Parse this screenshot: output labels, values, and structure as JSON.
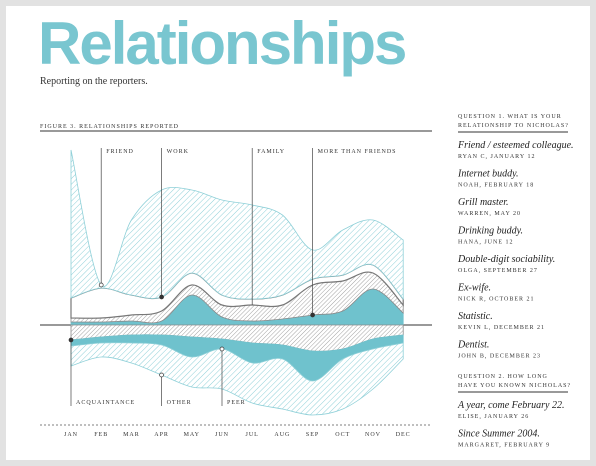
{
  "title": "Relationships",
  "subtitle": "Reporting on the reporters.",
  "chart_data": {
    "type": "streamgraph",
    "title": "FIGURE 3. RELATIONSHIPS REPORTED",
    "categories": [
      "JAN",
      "FEB",
      "MAR",
      "APR",
      "MAY",
      "JUN",
      "JUL",
      "AUG",
      "SEP",
      "OCT",
      "NOV",
      "DEC"
    ],
    "series": [
      {
        "name": "MORE THAN FRIENDS",
        "color": "#6fc2cd",
        "pattern": "solid",
        "position": "above",
        "values": [
          3,
          3,
          4,
          4,
          30,
          8,
          4,
          6,
          10,
          14,
          36,
          12
        ]
      },
      {
        "name": "FAMILY",
        "color": "#8a8a8a",
        "pattern": "hatch",
        "position": "above",
        "values": [
          4,
          4,
          6,
          10,
          10,
          12,
          16,
          14,
          30,
          30,
          16,
          8
        ]
      },
      {
        "name": "WORK",
        "color": "#777777",
        "pattern": "none",
        "position": "above",
        "values": [
          20,
          30,
          20,
          14,
          12,
          10,
          6,
          10,
          6,
          6,
          8,
          6
        ]
      },
      {
        "name": "FRIEND",
        "color": "#8fd0d8",
        "pattern": "hatch",
        "position": "above",
        "values": [
          148,
          3,
          75,
          107,
          83,
          95,
          94,
          80,
          29,
          45,
          45,
          59
        ]
      },
      {
        "name": "ACQUAINTANCE",
        "color": "#8a8a8a",
        "pattern": "hatch",
        "position": "below",
        "values": [
          15,
          12,
          10,
          10,
          12,
          14,
          18,
          20,
          26,
          24,
          14,
          10
        ]
      },
      {
        "name": "PEER",
        "color": "#6fc2cd",
        "pattern": "solid",
        "position": "below",
        "values": [
          6,
          6,
          8,
          10,
          20,
          10,
          20,
          14,
          30,
          10,
          10,
          8
        ]
      },
      {
        "name": "OTHER",
        "color": "#8fd0d8",
        "pattern": "hatch",
        "position": "below",
        "values": [
          20,
          14,
          20,
          30,
          30,
          40,
          40,
          50,
          34,
          50,
          40,
          16
        ]
      }
    ]
  },
  "sidebar": [
    {
      "question": [
        "QUESTION 1. WHAT IS YOUR",
        "RELATIONSHIP TO NICHOLAS?"
      ],
      "answers": [
        {
          "answer": "Friend / esteemed colleague.",
          "credit": "RYAN C, JANUARY 12"
        },
        {
          "answer": "Internet buddy.",
          "credit": "NOAH, FEBRUARY 18"
        },
        {
          "answer": "Grill master.",
          "credit": "WARREN, MAY 20"
        },
        {
          "answer": "Drinking buddy.",
          "credit": "HANA, JUNE 12"
        },
        {
          "answer": "Double-digit sociability.",
          "credit": "OLGA, SEPTEMBER 27"
        },
        {
          "answer": "Ex-wife.",
          "credit": "NICK R, OCTOBER 21"
        },
        {
          "answer": "Statistic.",
          "credit": "KEVIN L, DECEMBER 21"
        },
        {
          "answer": "Dentist.",
          "credit": "JOHN B, DECEMBER 23"
        }
      ]
    },
    {
      "question": [
        "QUESTION 2. HOW LONG",
        "HAVE YOU KNOWN NICHOLAS?"
      ],
      "answers": [
        {
          "answer": "A year, come February 22.",
          "credit": "ELISE, JANUARY 26"
        },
        {
          "answer": "Since Summer 2004.",
          "credit": "MARGARET, FEBRUARY 9"
        }
      ]
    }
  ]
}
